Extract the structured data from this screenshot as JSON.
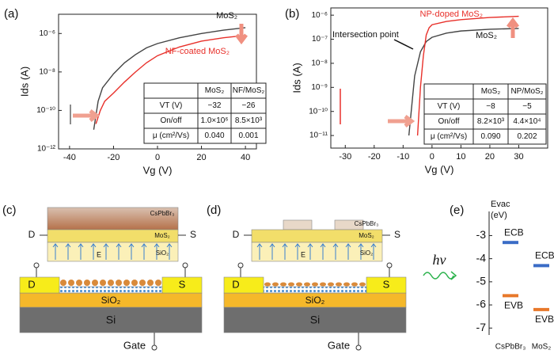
{
  "chart_data": [
    {
      "type": "line",
      "panel": "(a)",
      "xlabel": "Vg (V)",
      "ylabel": "Ids (A)",
      "log_y": true,
      "xlim": [
        -45,
        45
      ],
      "xticks": [
        -40,
        -20,
        0,
        20,
        40
      ],
      "ylim": [
        1e-12,
        1e-05
      ],
      "yticks": [
        {
          "value": 1e-06,
          "label": "10⁻⁶"
        },
        {
          "value": 1e-08,
          "label": "10⁻⁸"
        },
        {
          "value": 1e-10,
          "label": "10⁻¹⁰"
        },
        {
          "value": 1e-12,
          "label": "10⁻¹²"
        }
      ],
      "series": [
        {
          "name": "MoS₂",
          "color": "#444444",
          "x": [
            -29,
            -27,
            -25,
            -20,
            -15,
            -10,
            -5,
            0,
            10,
            20,
            30,
            40
          ],
          "values": [
            1e-11,
            3e-10,
            1.5e-09,
            8e-09,
            3e-08,
            8e-08,
            1.8e-07,
            3e-07,
            6e-07,
            1e-06,
            1.5e-06,
            2e-06
          ]
        },
        {
          "name": "NF-coated MoS₂",
          "color": "#e8302a",
          "x": [
            -28,
            -26,
            -24,
            -20,
            -15,
            -10,
            -5,
            0,
            10,
            20,
            30,
            40
          ],
          "values": [
            2e-11,
            1e-10,
            3e-10,
            8e-10,
            3e-09,
            1e-08,
            3e-08,
            7e-08,
            2e-07,
            4e-07,
            6e-07,
            8e-07
          ]
        }
      ],
      "table": {
        "header": [
          "MoS₂",
          "NF/MoS₂"
        ],
        "rows": [
          [
            "VT (V)",
            "−32",
            "−26"
          ],
          [
            "On/off",
            "1.0×10⁶",
            "8.5×10³"
          ],
          [
            "μ (cm²/Vs)",
            "0.040",
            "0.001"
          ]
        ]
      }
    },
    {
      "type": "line",
      "panel": "(b)",
      "xlabel": "Vg (V)",
      "ylabel": "Ids (A)",
      "log_y": true,
      "xlim": [
        -35,
        40
      ],
      "xticks": [
        -30,
        -20,
        -10,
        0,
        10,
        20,
        30
      ],
      "ylim": [
        3e-12,
        2e-06
      ],
      "yticks": [
        {
          "value": 1e-06,
          "label": "10⁻⁶"
        },
        {
          "value": 1e-07,
          "label": "10⁻⁷"
        },
        {
          "value": 1e-08,
          "label": "10⁻⁸"
        },
        {
          "value": 1e-09,
          "label": "10⁻⁹"
        },
        {
          "value": 1e-10,
          "label": "10⁻¹⁰"
        },
        {
          "value": 1e-11,
          "label": "10⁻¹¹"
        }
      ],
      "annotation": "Intersection point",
      "series": [
        {
          "name": "MoS₂",
          "color": "#444444",
          "x": [
            -8,
            -6,
            -4,
            -2,
            0,
            5,
            10,
            20,
            30
          ],
          "values": [
            1e-11,
            3e-09,
            3e-08,
            8e-08,
            1.2e-07,
            1.8e-07,
            2.2e-07,
            2.6e-07,
            2.8e-07
          ]
        },
        {
          "name": "NP-doped MoS₂",
          "color": "#e8302a",
          "x": [
            -5,
            -4,
            -3,
            -2,
            -1,
            0,
            5,
            10,
            20,
            30
          ],
          "values": [
            1e-11,
            1e-09,
            2e-08,
            1.5e-07,
            3e-07,
            4e-07,
            5.5e-07,
            6.5e-07,
            8e-07,
            9e-07
          ]
        }
      ],
      "table": {
        "header": [
          "MoS₂",
          "NP/MoS₂"
        ],
        "rows": [
          [
            "VT (V)",
            "−8",
            "−5"
          ],
          [
            "On/off",
            "8.2×10³",
            "4.4×10⁴"
          ],
          [
            "μ (cm²/Vs)",
            "0.090",
            "0.202"
          ]
        ]
      }
    },
    {
      "type": "levels",
      "panel": "(e)",
      "ylabel": "Evac",
      "yunit": "(eV)",
      "light": "hν",
      "ylim": [
        -7.3,
        -2.3
      ],
      "yticks": [
        -3,
        -4,
        -5,
        -6,
        -7
      ],
      "categories": [
        "CsPbBr₃",
        "MoS₂"
      ],
      "series": [
        {
          "name": "ECB",
          "color": "#3a6cc6",
          "values": [
            -3.3,
            -4.3
          ]
        },
        {
          "name": "EVB",
          "color": "#e8782a",
          "values": [
            -5.6,
            -6.2
          ]
        }
      ]
    }
  ],
  "panel_c": {
    "label": "(c)",
    "texts": [
      "D",
      "S",
      "CsPbBr₃",
      "MoS₂",
      "SiO₂",
      "E",
      "D",
      "S",
      "SiO₂",
      "Si",
      "Gate"
    ]
  },
  "panel_d": {
    "label": "(d)",
    "texts": [
      "D",
      "S",
      "CsPbBr₃",
      "MoS₂",
      "SiO₂",
      "E",
      "D",
      "S",
      "SiO₂",
      "Si",
      "Gate"
    ]
  }
}
